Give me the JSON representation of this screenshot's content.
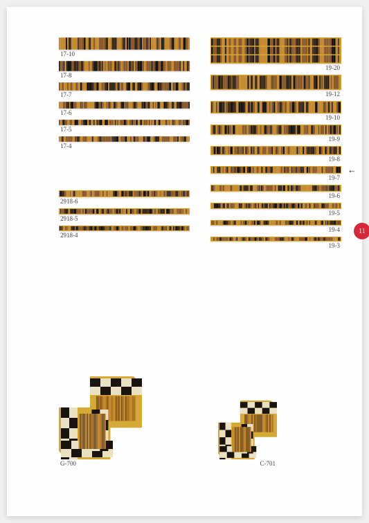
{
  "page_number": "11",
  "colors": {
    "page_bg": "#fefefe",
    "label_color": "#444444",
    "badge_bg": "#d62839",
    "arrow_color": "#222222",
    "yellow_border": "#d6a936",
    "wood_light": "#c48a2e",
    "wood_mid": "#8b5a2b",
    "wood_dark": "#3b2a1a",
    "wood_black": "#1a1410",
    "cream": "#eae0c2"
  },
  "left_column_top": [
    {
      "label": "17-10",
      "height": 18
    },
    {
      "label": "17-8",
      "height": 15
    },
    {
      "label": "17-7",
      "height": 12
    },
    {
      "label": "17-6",
      "height": 10
    },
    {
      "label": "17-5",
      "height": 8
    },
    {
      "label": "17-4",
      "height": 8
    }
  ],
  "left_column_bottom": [
    {
      "label": "2918-6",
      "height": 10
    },
    {
      "label": "2918-5",
      "height": 9
    },
    {
      "label": "2918-4",
      "height": 8
    }
  ],
  "right_column": [
    {
      "label": "19-20",
      "height": 38
    },
    {
      "label": "19-12",
      "height": 22
    },
    {
      "label": "19-10",
      "height": 18
    },
    {
      "label": "19-9",
      "height": 15
    },
    {
      "label": "19-8",
      "height": 13
    },
    {
      "label": "19-7",
      "height": 11,
      "arrow": true
    },
    {
      "label": "19-6",
      "height": 10
    },
    {
      "label": "19-5",
      "height": 9
    },
    {
      "label": "19-4",
      "height": 8
    },
    {
      "label": "19-3",
      "height": 7
    }
  ],
  "corners": [
    {
      "label": "G-700",
      "size": 120,
      "align": "left"
    },
    {
      "label": "C-701",
      "size": 85,
      "align": "right"
    }
  ]
}
